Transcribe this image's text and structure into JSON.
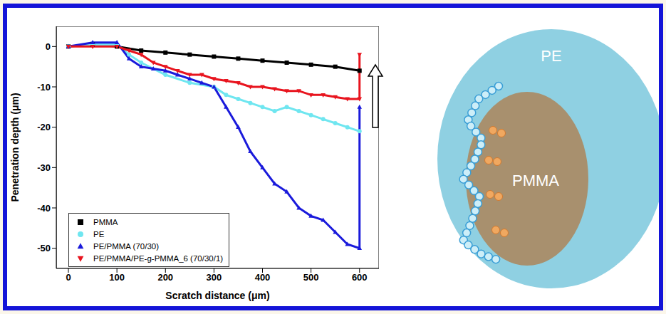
{
  "chart_data": {
    "type": "line",
    "xlabel": "Scratch distance (μm)",
    "ylabel": "Penetration depth (μm)",
    "xlim": [
      -25,
      640
    ],
    "ylim": [
      -55,
      5
    ],
    "xticks": [
      0,
      100,
      200,
      300,
      400,
      500,
      600
    ],
    "yticks": [
      0,
      -10,
      -20,
      -30,
      -40,
      -50
    ],
    "legend": "lower left",
    "series": [
      {
        "name": "PMMA",
        "color": "#000000",
        "marker": "square",
        "x": [
          0,
          50,
          100,
          150,
          200,
          250,
          300,
          350,
          400,
          450,
          500,
          550,
          600
        ],
        "values": [
          0,
          0.5,
          0,
          -1,
          -1.5,
          -2,
          -2.5,
          -3,
          -3.5,
          -4,
          -4.5,
          -5,
          -6
        ]
      },
      {
        "name": "PE",
        "color": "#6fe6f0",
        "marker": "circle",
        "x": [
          0,
          50,
          100,
          125,
          150,
          200,
          250,
          300,
          325,
          350,
          375,
          400,
          425,
          450,
          475,
          500,
          525,
          550,
          575,
          600
        ],
        "values": [
          0,
          0.5,
          0.5,
          -2,
          -4,
          -7,
          -9,
          -10,
          -12,
          -13,
          -14,
          -15,
          -16,
          -15,
          -16,
          -17,
          -18,
          -19,
          -20,
          -21
        ]
      },
      {
        "name": "PE/PMMA (70/30)",
        "color": "#1a1adb",
        "marker": "triangle",
        "x": [
          0,
          50,
          100,
          125,
          150,
          175,
          200,
          225,
          250,
          275,
          300,
          325,
          350,
          375,
          400,
          425,
          450,
          475,
          500,
          525,
          550,
          575,
          600,
          600
        ],
        "values": [
          0,
          1,
          1,
          -3,
          -5,
          -5.5,
          -6,
          -7,
          -8,
          -9,
          -10,
          -15,
          -20,
          -26,
          -30,
          -34,
          -36,
          -40,
          -42,
          -43,
          -46,
          -49,
          -50,
          -15
        ]
      },
      {
        "name": "PE/PMMA/PE-g-PMMA_6 (70/30/1)",
        "color": "#e8141e",
        "marker": "triangle-down",
        "x": [
          0,
          50,
          100,
          125,
          150,
          175,
          200,
          225,
          250,
          275,
          300,
          325,
          350,
          375,
          400,
          425,
          450,
          475,
          500,
          525,
          550,
          575,
          600,
          600
        ],
        "values": [
          0,
          0,
          0,
          -1,
          -2,
          -4,
          -5,
          -6,
          -7,
          -7,
          -8,
          -8.5,
          -9,
          -10,
          -10,
          -10.5,
          -11,
          -11,
          -12,
          -12,
          -12.5,
          -13,
          -13,
          -2
        ]
      }
    ]
  },
  "diagram": {
    "outer_label": "PE",
    "inner_label": "PMMA"
  }
}
